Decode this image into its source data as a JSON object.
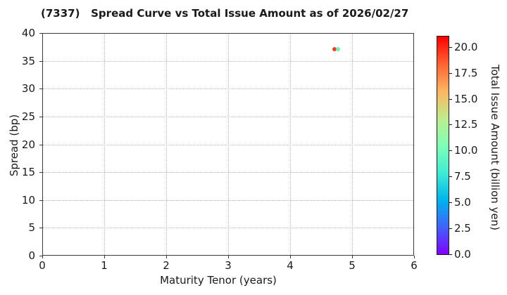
{
  "chart_data": {
    "type": "scatter",
    "title": "(7337)   Spread Curve vs Total Issue Amount as of 2026/02/27",
    "xlabel": "Maturity Tenor (years)",
    "ylabel": "Spread (bp)",
    "xlim": [
      0,
      6
    ],
    "ylim": [
      0,
      40
    ],
    "xticks": [
      0,
      1,
      2,
      3,
      4,
      5,
      6
    ],
    "yticks": [
      0,
      5,
      10,
      15,
      20,
      25,
      30,
      35,
      40
    ],
    "grid": {
      "visible": true,
      "style": "dotted",
      "color": "#b5b5b5"
    },
    "points": [
      {
        "x": 4.72,
        "y": 37.1,
        "amount_est": 20.5,
        "color": "#e8402e"
      },
      {
        "x": 4.77,
        "y": 37.1,
        "amount_est": 10.5,
        "color": "#77f0a8"
      }
    ],
    "colorbar": {
      "label": "Total Issue Amount (billion yen)",
      "colormap": "rainbow",
      "vmin": 0,
      "vmax": 21,
      "tick_values": [
        0,
        2.5,
        5,
        7.5,
        10,
        12.5,
        15,
        17.5,
        20
      ],
      "tick_labels": [
        "0.0",
        "2.5",
        "5.0",
        "7.5",
        "10.0",
        "12.5",
        "15.0",
        "17.5",
        "20.0"
      ],
      "gradient_stops": [
        {
          "pos": 0.0,
          "color": "#8000ff"
        },
        {
          "pos": 0.125,
          "color": "#4062fa"
        },
        {
          "pos": 0.25,
          "color": "#00b4ec"
        },
        {
          "pos": 0.375,
          "color": "#40ecd4"
        },
        {
          "pos": 0.5,
          "color": "#80ffb5"
        },
        {
          "pos": 0.625,
          "color": "#bfec8e"
        },
        {
          "pos": 0.75,
          "color": "#ffb462"
        },
        {
          "pos": 0.875,
          "color": "#ff6232"
        },
        {
          "pos": 1.0,
          "color": "#ff0000"
        }
      ]
    }
  }
}
